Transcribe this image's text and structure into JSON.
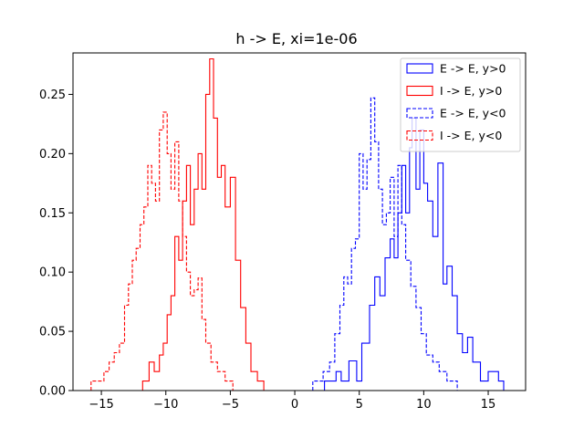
{
  "chart_data": {
    "type": "histogram",
    "title": "h -> E, xi=1e-06",
    "xlabel": "",
    "ylabel": "",
    "xlim": [
      -17.2,
      17.9
    ],
    "ylim": [
      0,
      0.285
    ],
    "xticks": [
      -15,
      -10,
      -5,
      0,
      5,
      10,
      15
    ],
    "xtick_labels": [
      "−15",
      "−10",
      "−5",
      "0",
      "5",
      "10",
      "15"
    ],
    "yticks": [
      0.0,
      0.05,
      0.1,
      0.15,
      0.2,
      0.25
    ],
    "ytick_labels": [
      "0.00",
      "0.05",
      "0.10",
      "0.15",
      "0.20",
      "0.25"
    ],
    "grid": false,
    "legend_position": "top-right",
    "series": [
      {
        "name": "E -> E, y>0",
        "color": "#0000ff",
        "style": "solid",
        "points": [
          [
            2.3,
            0
          ],
          [
            2.3,
            0.008
          ],
          [
            3.2,
            0.008
          ],
          [
            3.2,
            0.016
          ],
          [
            3.6,
            0.016
          ],
          [
            3.6,
            0.008
          ],
          [
            4.2,
            0.008
          ],
          [
            4.2,
            0.025
          ],
          [
            4.8,
            0.025
          ],
          [
            4.8,
            0.008
          ],
          [
            5.2,
            0.008
          ],
          [
            5.2,
            0.04
          ],
          [
            5.8,
            0.04
          ],
          [
            5.8,
            0.072
          ],
          [
            6.2,
            0.072
          ],
          [
            6.2,
            0.096
          ],
          [
            6.6,
            0.096
          ],
          [
            6.6,
            0.08
          ],
          [
            7.0,
            0.08
          ],
          [
            7.0,
            0.112
          ],
          [
            7.4,
            0.112
          ],
          [
            7.4,
            0.128
          ],
          [
            7.7,
            0.128
          ],
          [
            7.7,
            0.112
          ],
          [
            8.0,
            0.112
          ],
          [
            8.0,
            0.15
          ],
          [
            8.3,
            0.15
          ],
          [
            8.3,
            0.19
          ],
          [
            8.6,
            0.19
          ],
          [
            8.6,
            0.15
          ],
          [
            8.9,
            0.15
          ],
          [
            8.9,
            0.205
          ],
          [
            9.1,
            0.205
          ],
          [
            9.1,
            0.23
          ],
          [
            9.4,
            0.23
          ],
          [
            9.4,
            0.17
          ],
          [
            9.7,
            0.17
          ],
          [
            9.7,
            0.22
          ],
          [
            10.0,
            0.22
          ],
          [
            10.0,
            0.175
          ],
          [
            10.3,
            0.175
          ],
          [
            10.3,
            0.16
          ],
          [
            10.7,
            0.16
          ],
          [
            10.7,
            0.13
          ],
          [
            11.1,
            0.13
          ],
          [
            11.1,
            0.192
          ],
          [
            11.5,
            0.192
          ],
          [
            11.5,
            0.09
          ],
          [
            11.8,
            0.09
          ],
          [
            11.8,
            0.105
          ],
          [
            12.2,
            0.105
          ],
          [
            12.2,
            0.08
          ],
          [
            12.6,
            0.08
          ],
          [
            12.6,
            0.048
          ],
          [
            13.0,
            0.048
          ],
          [
            13.0,
            0.032
          ],
          [
            13.4,
            0.032
          ],
          [
            13.4,
            0.045
          ],
          [
            13.8,
            0.045
          ],
          [
            13.8,
            0.024
          ],
          [
            14.4,
            0.024
          ],
          [
            14.4,
            0.008
          ],
          [
            15.0,
            0.008
          ],
          [
            15.0,
            0.016
          ],
          [
            15.8,
            0.016
          ],
          [
            15.8,
            0.008
          ],
          [
            16.2,
            0.008
          ],
          [
            16.2,
            0
          ]
        ]
      },
      {
        "name": "I -> E, y>0",
        "color": "#ff0000",
        "style": "solid",
        "points": [
          [
            -11.8,
            0
          ],
          [
            -11.8,
            0.008
          ],
          [
            -11.3,
            0.008
          ],
          [
            -11.3,
            0.024
          ],
          [
            -10.9,
            0.024
          ],
          [
            -10.9,
            0.016
          ],
          [
            -10.5,
            0.016
          ],
          [
            -10.5,
            0.03
          ],
          [
            -10.2,
            0.03
          ],
          [
            -10.2,
            0.04
          ],
          [
            -9.9,
            0.04
          ],
          [
            -9.9,
            0.064
          ],
          [
            -9.6,
            0.064
          ],
          [
            -9.6,
            0.08
          ],
          [
            -9.3,
            0.08
          ],
          [
            -9.3,
            0.13
          ],
          [
            -9.0,
            0.13
          ],
          [
            -9.0,
            0.11
          ],
          [
            -8.7,
            0.11
          ],
          [
            -8.7,
            0.16
          ],
          [
            -8.4,
            0.16
          ],
          [
            -8.4,
            0.19
          ],
          [
            -8.1,
            0.19
          ],
          [
            -8.1,
            0.14
          ],
          [
            -7.8,
            0.14
          ],
          [
            -7.8,
            0.17
          ],
          [
            -7.5,
            0.17
          ],
          [
            -7.5,
            0.2
          ],
          [
            -7.2,
            0.2
          ],
          [
            -7.2,
            0.17
          ],
          [
            -6.9,
            0.17
          ],
          [
            -6.9,
            0.25
          ],
          [
            -6.6,
            0.25
          ],
          [
            -6.6,
            0.28
          ],
          [
            -6.3,
            0.28
          ],
          [
            -6.3,
            0.23
          ],
          [
            -6.0,
            0.23
          ],
          [
            -6.0,
            0.18
          ],
          [
            -5.7,
            0.18
          ],
          [
            -5.7,
            0.19
          ],
          [
            -5.4,
            0.19
          ],
          [
            -5.4,
            0.155
          ],
          [
            -5.0,
            0.155
          ],
          [
            -5.0,
            0.18
          ],
          [
            -4.6,
            0.18
          ],
          [
            -4.6,
            0.11
          ],
          [
            -4.2,
            0.11
          ],
          [
            -4.2,
            0.07
          ],
          [
            -3.8,
            0.07
          ],
          [
            -3.8,
            0.04
          ],
          [
            -3.4,
            0.04
          ],
          [
            -3.4,
            0.016
          ],
          [
            -2.9,
            0.016
          ],
          [
            -2.9,
            0.008
          ],
          [
            -2.4,
            0.008
          ],
          [
            -2.4,
            0
          ]
        ]
      },
      {
        "name": "E -> E, y<0",
        "color": "#0000ff",
        "style": "dashed",
        "points": [
          [
            1.4,
            0
          ],
          [
            1.4,
            0.008
          ],
          [
            2.2,
            0.008
          ],
          [
            2.2,
            0.016
          ],
          [
            2.7,
            0.016
          ],
          [
            2.7,
            0.024
          ],
          [
            3.1,
            0.024
          ],
          [
            3.1,
            0.048
          ],
          [
            3.5,
            0.048
          ],
          [
            3.5,
            0.072
          ],
          [
            3.8,
            0.072
          ],
          [
            3.8,
            0.096
          ],
          [
            4.1,
            0.096
          ],
          [
            4.1,
            0.09
          ],
          [
            4.4,
            0.09
          ],
          [
            4.4,
            0.12
          ],
          [
            4.7,
            0.12
          ],
          [
            4.7,
            0.128
          ],
          [
            5.0,
            0.128
          ],
          [
            5.0,
            0.2
          ],
          [
            5.3,
            0.2
          ],
          [
            5.3,
            0.17
          ],
          [
            5.6,
            0.17
          ],
          [
            5.6,
            0.195
          ],
          [
            5.9,
            0.195
          ],
          [
            5.9,
            0.247
          ],
          [
            6.2,
            0.247
          ],
          [
            6.2,
            0.21
          ],
          [
            6.5,
            0.21
          ],
          [
            6.5,
            0.17
          ],
          [
            6.8,
            0.17
          ],
          [
            6.8,
            0.14
          ],
          [
            7.1,
            0.14
          ],
          [
            7.1,
            0.15
          ],
          [
            7.4,
            0.15
          ],
          [
            7.4,
            0.18
          ],
          [
            7.7,
            0.18
          ],
          [
            7.7,
            0.13
          ],
          [
            8.0,
            0.13
          ],
          [
            8.0,
            0.19
          ],
          [
            8.3,
            0.19
          ],
          [
            8.3,
            0.14
          ],
          [
            8.6,
            0.14
          ],
          [
            8.6,
            0.11
          ],
          [
            9.0,
            0.11
          ],
          [
            9.0,
            0.088
          ],
          [
            9.4,
            0.088
          ],
          [
            9.4,
            0.07
          ],
          [
            9.8,
            0.07
          ],
          [
            9.8,
            0.048
          ],
          [
            10.2,
            0.048
          ],
          [
            10.2,
            0.03
          ],
          [
            10.7,
            0.03
          ],
          [
            10.7,
            0.024
          ],
          [
            11.2,
            0.024
          ],
          [
            11.2,
            0.016
          ],
          [
            11.8,
            0.016
          ],
          [
            11.8,
            0.008
          ],
          [
            12.6,
            0.008
          ],
          [
            12.6,
            0
          ]
        ]
      },
      {
        "name": "I -> E, y<0",
        "color": "#ff0000",
        "style": "dashed",
        "points": [
          [
            -15.8,
            0
          ],
          [
            -15.8,
            0.008
          ],
          [
            -14.8,
            0.008
          ],
          [
            -14.8,
            0.016
          ],
          [
            -14.4,
            0.016
          ],
          [
            -14.4,
            0.024
          ],
          [
            -14.0,
            0.024
          ],
          [
            -14.0,
            0.032
          ],
          [
            -13.6,
            0.032
          ],
          [
            -13.6,
            0.04
          ],
          [
            -13.2,
            0.04
          ],
          [
            -13.2,
            0.072
          ],
          [
            -12.9,
            0.072
          ],
          [
            -12.9,
            0.09
          ],
          [
            -12.6,
            0.09
          ],
          [
            -12.6,
            0.11
          ],
          [
            -12.3,
            0.11
          ],
          [
            -12.3,
            0.12
          ],
          [
            -12.0,
            0.12
          ],
          [
            -12.0,
            0.14
          ],
          [
            -11.7,
            0.14
          ],
          [
            -11.7,
            0.155
          ],
          [
            -11.4,
            0.155
          ],
          [
            -11.4,
            0.19
          ],
          [
            -11.1,
            0.19
          ],
          [
            -11.1,
            0.175
          ],
          [
            -10.8,
            0.175
          ],
          [
            -10.8,
            0.16
          ],
          [
            -10.5,
            0.16
          ],
          [
            -10.5,
            0.22
          ],
          [
            -10.2,
            0.22
          ],
          [
            -10.2,
            0.235
          ],
          [
            -9.9,
            0.235
          ],
          [
            -9.9,
            0.2
          ],
          [
            -9.6,
            0.2
          ],
          [
            -9.6,
            0.17
          ],
          [
            -9.3,
            0.17
          ],
          [
            -9.3,
            0.21
          ],
          [
            -9.0,
            0.21
          ],
          [
            -9.0,
            0.16
          ],
          [
            -8.7,
            0.16
          ],
          [
            -8.7,
            0.13
          ],
          [
            -8.4,
            0.13
          ],
          [
            -8.4,
            0.1
          ],
          [
            -8.1,
            0.1
          ],
          [
            -8.1,
            0.08
          ],
          [
            -7.8,
            0.08
          ],
          [
            -7.8,
            0.085
          ],
          [
            -7.5,
            0.085
          ],
          [
            -7.5,
            0.095
          ],
          [
            -7.2,
            0.095
          ],
          [
            -7.2,
            0.06
          ],
          [
            -6.9,
            0.06
          ],
          [
            -6.9,
            0.04
          ],
          [
            -6.5,
            0.04
          ],
          [
            -6.5,
            0.024
          ],
          [
            -6.0,
            0.024
          ],
          [
            -6.0,
            0.016
          ],
          [
            -5.4,
            0.016
          ],
          [
            -5.4,
            0.008
          ],
          [
            -4.8,
            0.008
          ],
          [
            -4.8,
            0
          ]
        ]
      }
    ]
  }
}
